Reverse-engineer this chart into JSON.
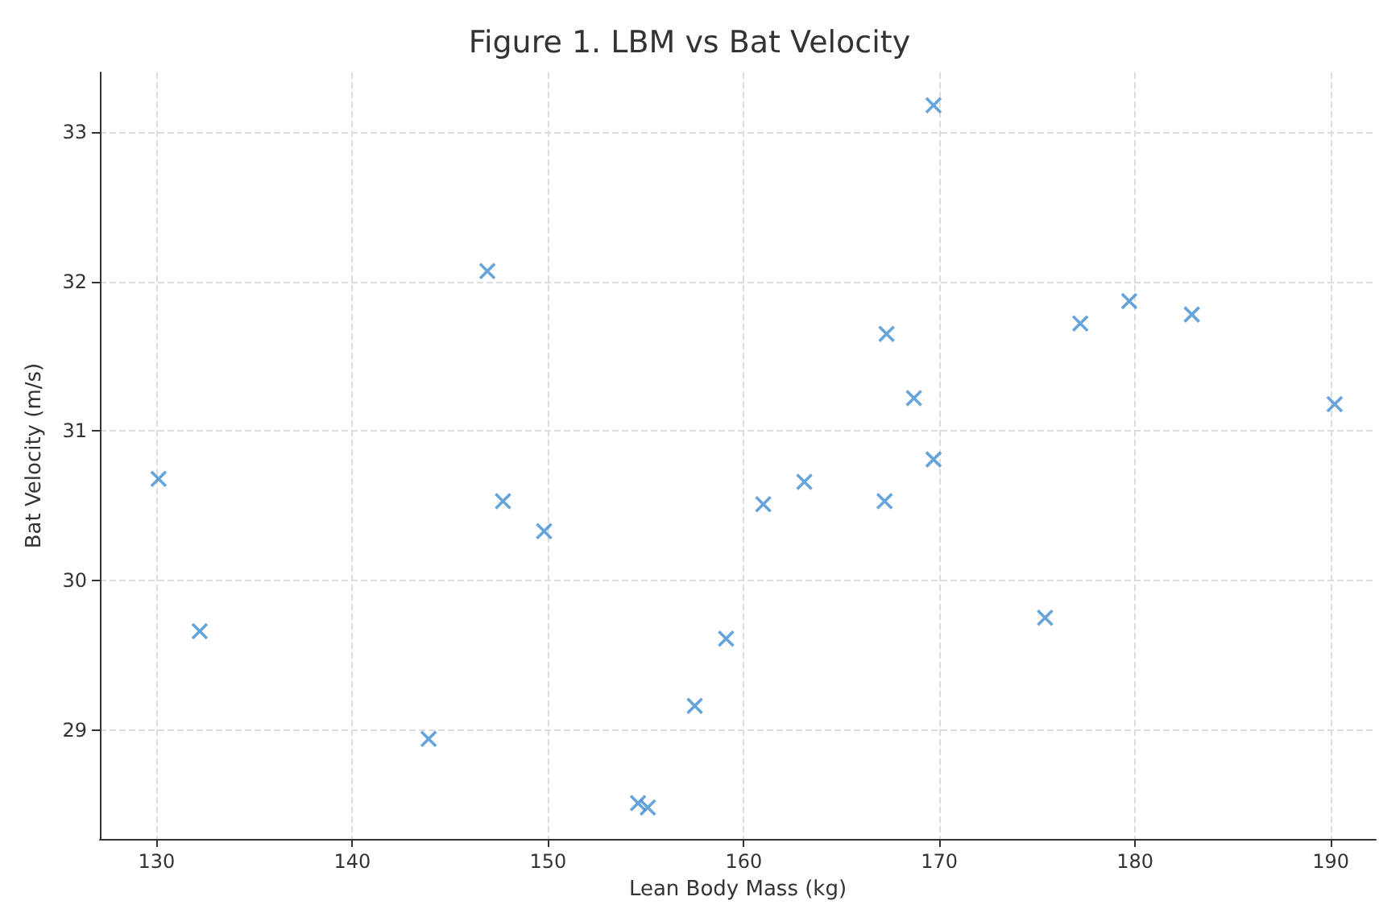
{
  "chart_data": {
    "type": "scatter",
    "title": "Figure 1. LBM vs Bat Velocity",
    "xlabel": "Lean Body Mass (kg)",
    "ylabel": "Bat Velocity (m/s)",
    "x": [
      130.1,
      132.2,
      143.9,
      147.7,
      146.9,
      149.8,
      154.6,
      155.1,
      157.5,
      159.1,
      161.0,
      163.1,
      167.2,
      167.3,
      168.7,
      169.7,
      169.7,
      175.4,
      177.2,
      179.7,
      182.9,
      190.2
    ],
    "values": [
      30.68,
      29.66,
      28.94,
      30.53,
      32.07,
      30.33,
      28.51,
      28.48,
      29.16,
      29.61,
      30.51,
      30.66,
      30.53,
      31.65,
      31.22,
      33.18,
      30.81,
      29.75,
      31.72,
      31.87,
      31.78,
      31.18
    ],
    "color": "#3f8fd2",
    "marker": "cross",
    "grid": true,
    "xlim": [
      127.1,
      192.3
    ],
    "xticks": [
      130,
      140,
      150,
      160,
      170,
      180,
      190
    ],
    "ylim": [
      28.27,
      33.4
    ],
    "yticks": [
      29,
      30,
      31,
      32,
      33
    ]
  }
}
